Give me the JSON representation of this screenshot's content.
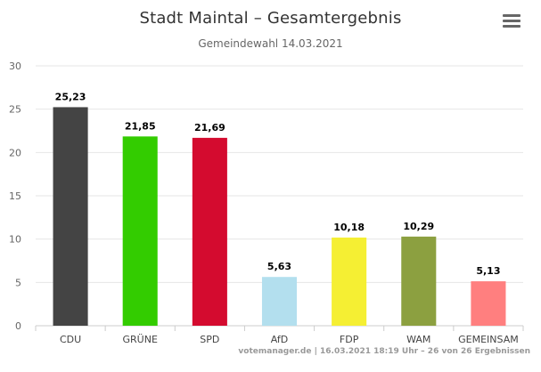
{
  "chart_data": {
    "type": "bar",
    "title": "Stadt Maintal – Gesamtergebnis",
    "subtitle": "Gemeindewahl 14.03.2021",
    "categories": [
      "CDU",
      "GRÜNE",
      "SPD",
      "AfD",
      "FDP",
      "WAM",
      "GEMEINSAM"
    ],
    "values": [
      25.23,
      21.85,
      21.69,
      5.63,
      10.18,
      10.29,
      5.13
    ],
    "data_labels": [
      "25,23",
      "21,85",
      "21,69",
      "5,63",
      "10,18",
      "10,29",
      "5,13"
    ],
    "colors": [
      "#444444",
      "#33cc00",
      "#d40b2f",
      "#b3dfee",
      "#f5ef33",
      "#8ca040",
      "#ff7f7f"
    ],
    "ylim": [
      0,
      30
    ],
    "yticks": [
      0,
      5,
      10,
      15,
      20,
      25,
      30
    ],
    "grid": true,
    "legend": "none"
  },
  "menu": {
    "icon": "hamburger-menu-icon"
  },
  "credits": "votemanager.de | 16.03.2021 18:19 Uhr – 26 von 26 Ergebnissen"
}
